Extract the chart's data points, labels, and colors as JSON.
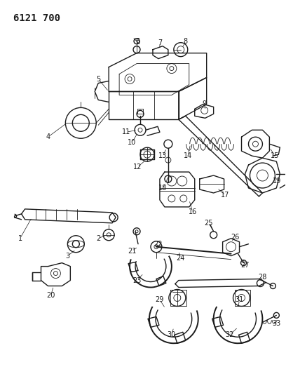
{
  "title": "6121 700",
  "bg_color": "#ffffff",
  "line_color": "#1a1a1a",
  "title_fontsize": 10,
  "label_fontsize": 7,
  "figsize": [
    4.08,
    5.33
  ],
  "dpi": 100
}
